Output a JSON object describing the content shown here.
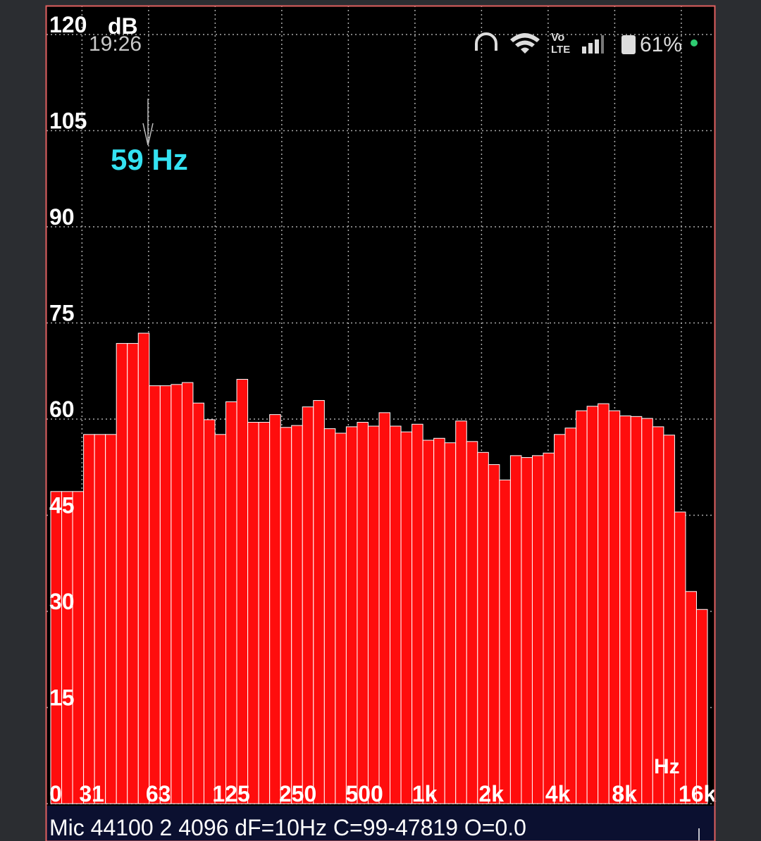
{
  "status_bar": {
    "time": "19:26",
    "network": [
      "Vo",
      "LTE"
    ],
    "battery": "61%"
  },
  "chart_data": {
    "type": "bar",
    "y_unit_label": "dB",
    "x_unit_label": "Hz",
    "annotation": {
      "text": "59 Hz"
    },
    "values": [
      48.7,
      48.7,
      48.7,
      57.6,
      57.6,
      57.6,
      71.8,
      71.8,
      73.4,
      65.2,
      65.2,
      65.4,
      65.7,
      62.5,
      59.9,
      57.6,
      62.7,
      66.2,
      59.5,
      59.5,
      60.7,
      58.7,
      59.0,
      61.9,
      62.9,
      58.5,
      57.8,
      58.8,
      59.5,
      58.9,
      61.0,
      58.9,
      58.0,
      59.2,
      56.7,
      57.0,
      56.3,
      59.7,
      56.5,
      54.8,
      52.9,
      50.5,
      54.3,
      54.0,
      54.3,
      54.7,
      57.6,
      58.6,
      61.3,
      62.0,
      62.4,
      61.3,
      60.5,
      60.4,
      60.1,
      58.8,
      57.5,
      45.5,
      33.1,
      30.3
    ],
    "color": "#ff0d0d",
    "ylim": [
      0,
      124.5
    ],
    "yticks": [
      0,
      15,
      30,
      45,
      60,
      75,
      90,
      105,
      120
    ],
    "xscale": "log",
    "xlim": [
      21.6,
      22600
    ],
    "xticks": [
      {
        "value": 31.25,
        "label": "31"
      },
      {
        "value": 62.5,
        "label": "63"
      },
      125,
      250,
      500,
      {
        "value": 1000,
        "label": "1k"
      },
      {
        "value": 2000,
        "label": "2k"
      },
      {
        "value": 4000,
        "label": "4k"
      },
      {
        "value": 8000,
        "label": "8k"
      },
      {
        "value": 16000,
        "label": "16k"
      }
    ],
    "grid": true
  },
  "footer": {
    "text": "Mic 44100 2 4096 dF=10Hz C=99-47819 O=0.0"
  }
}
